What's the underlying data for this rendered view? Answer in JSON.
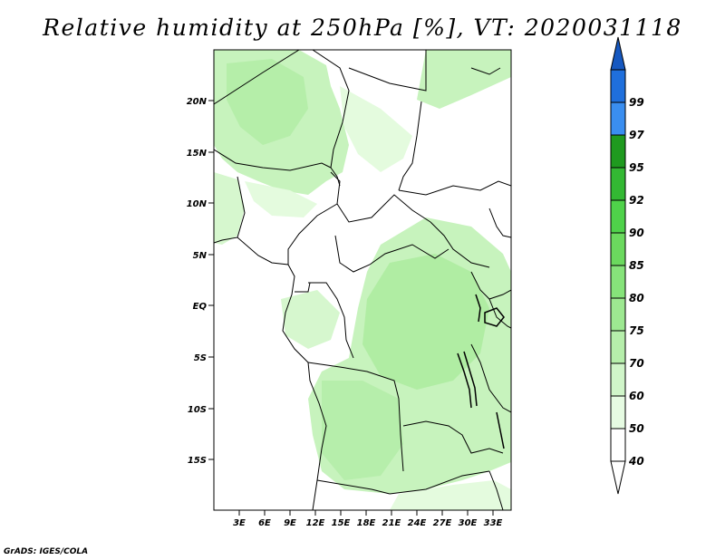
{
  "title": "Relative humidity at 250hPa [%], VT: 2020031118",
  "credit": "GrADS: IGES/COLA",
  "map": {
    "lat_labels": [
      "20N",
      "15N",
      "10N",
      "5N",
      "EQ",
      "5S",
      "10S",
      "15S"
    ],
    "lon_labels": [
      "3E",
      "6E",
      "9E",
      "12E",
      "15E",
      "18E",
      "21E",
      "24E",
      "27E",
      "30E",
      "33E"
    ]
  },
  "colorbar": {
    "labels": [
      "40",
      "50",
      "60",
      "70",
      "75",
      "80",
      "85",
      "90",
      "92",
      "95",
      "97",
      "99"
    ],
    "colors": [
      "#ffffff",
      "#e6fbe2",
      "#d0f5c9",
      "#b6eeab",
      "#9de891",
      "#86e37a",
      "#6bd95e",
      "#4fd24a",
      "#33b833",
      "#1f9a1f",
      "#0e7d0e",
      "#3a8ef0",
      "#1f6fdc",
      "#1658c0"
    ]
  },
  "colors": {
    "light_green": "#c7f3bd",
    "mid_green": "#a6e999",
    "pale_green": "#e4fbde"
  }
}
